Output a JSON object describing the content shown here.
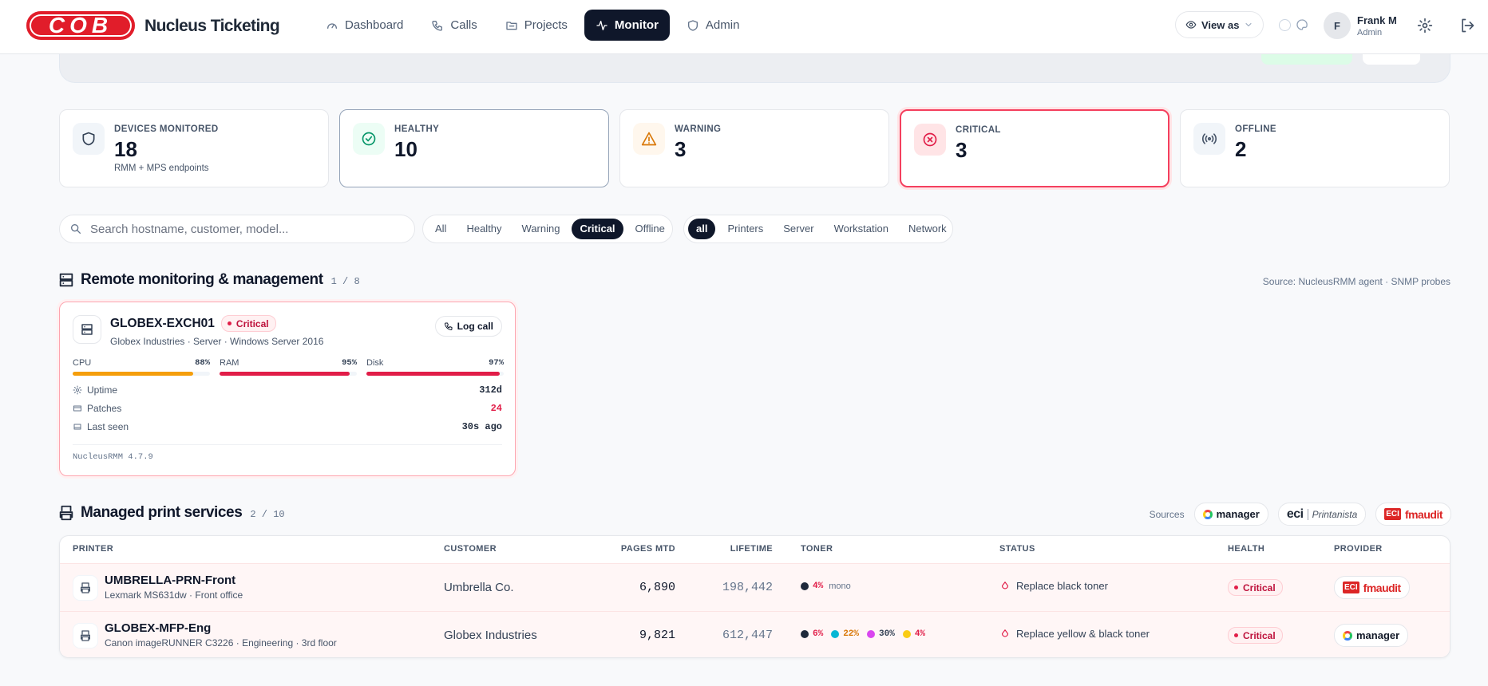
{
  "nav": {
    "logo": "COB",
    "brand": "Nucleus Ticketing",
    "items": [
      "Dashboard",
      "Calls",
      "Projects",
      "Monitor",
      "Admin"
    ],
    "active": 3,
    "view_as": "View as",
    "user": {
      "initial": "F",
      "name": "Frank M",
      "role": "Admin"
    }
  },
  "stats": [
    {
      "label": "DEVICES MONITORED",
      "value": 18,
      "sub": "RMM + MPS endpoints"
    },
    {
      "label": "HEALTHY",
      "value": 10
    },
    {
      "label": "WARNING",
      "value": 3
    },
    {
      "label": "CRITICAL",
      "value": 3
    },
    {
      "label": "OFFLINE",
      "value": 2
    }
  ],
  "search": {
    "placeholder": "Search hostname, customer, model..."
  },
  "status_filters": {
    "options": [
      "All",
      "Healthy",
      "Warning",
      "Critical",
      "Offline"
    ],
    "active": 3
  },
  "type_filters": {
    "options": [
      "all",
      "Printers",
      "Server",
      "Workstation",
      "Network"
    ],
    "active": 0
  },
  "rmm": {
    "title": "Remote monitoring & management",
    "count": "1 / 8",
    "source": "Source: NucleusRMM agent · SNMP probes",
    "devices": [
      {
        "name": "GLOBEX-EXCH01",
        "status": "Critical",
        "action": "Log call",
        "details": "Globex Industries · Server · Windows Server 2016",
        "metrics": [
          {
            "label": "CPU",
            "value": 88,
            "value_label": "88%",
            "color": "#f59e0b"
          },
          {
            "label": "RAM",
            "value": 95,
            "value_label": "95%",
            "color": "#e11d48"
          },
          {
            "label": "Disk",
            "value": 97,
            "value_label": "97%",
            "color": "#e11d48"
          }
        ],
        "info": [
          {
            "label": "Uptime",
            "value": "312d"
          },
          {
            "label": "Patches",
            "value": "24",
            "color": "#e11d48"
          },
          {
            "label": "Last seen",
            "value": "30s ago"
          }
        ],
        "agent": "NucleusRMM 4.7.9"
      }
    ]
  },
  "mps": {
    "title": "Managed print services",
    "count": "2 / 10",
    "sources_label": "Sources",
    "sources": [
      {
        "name": "manager"
      },
      {
        "name": "eci",
        "sub": "Printanista"
      },
      {
        "badge": "ECI",
        "name": "fmaudit"
      }
    ],
    "columns": [
      "PRINTER",
      "CUSTOMER",
      "PAGES MTD",
      "LIFETIME",
      "TONER",
      "STATUS",
      "HEALTH",
      "PROVIDER"
    ],
    "rows": [
      {
        "printer": "UMBRELLA-PRN-Front",
        "model": "Lexmark MS631dw · Front office",
        "customer": "Umbrella Co.",
        "pages_mtd": "6,890",
        "lifetime": "198,442",
        "toner": [
          {
            "color": "#1e293b",
            "level": "4%",
            "level_color": "#e11d48"
          }
        ],
        "toner_note": "mono",
        "status": "Replace black toner",
        "health": "Critical",
        "provider": {
          "badge": "ECI",
          "name": "fmaudit"
        }
      },
      {
        "printer": "GLOBEX-MFP-Eng",
        "model": "Canon imageRUNNER C3226 · Engineering · 3rd floor",
        "customer": "Globex Industries",
        "pages_mtd": "9,821",
        "lifetime": "612,447",
        "toner": [
          {
            "color": "#1e293b",
            "level": "6%",
            "level_color": "#e11d48"
          },
          {
            "color": "#06b6d4",
            "level": "22%",
            "level_color": "#d97706"
          },
          {
            "color": "#d946ef",
            "level": "30%",
            "level_color": "#334155"
          },
          {
            "color": "#facc15",
            "level": "4%",
            "level_color": "#e11d48"
          }
        ],
        "status": "Replace yellow & black toner",
        "health": "Critical",
        "provider": {
          "name": "manager"
        }
      }
    ]
  }
}
